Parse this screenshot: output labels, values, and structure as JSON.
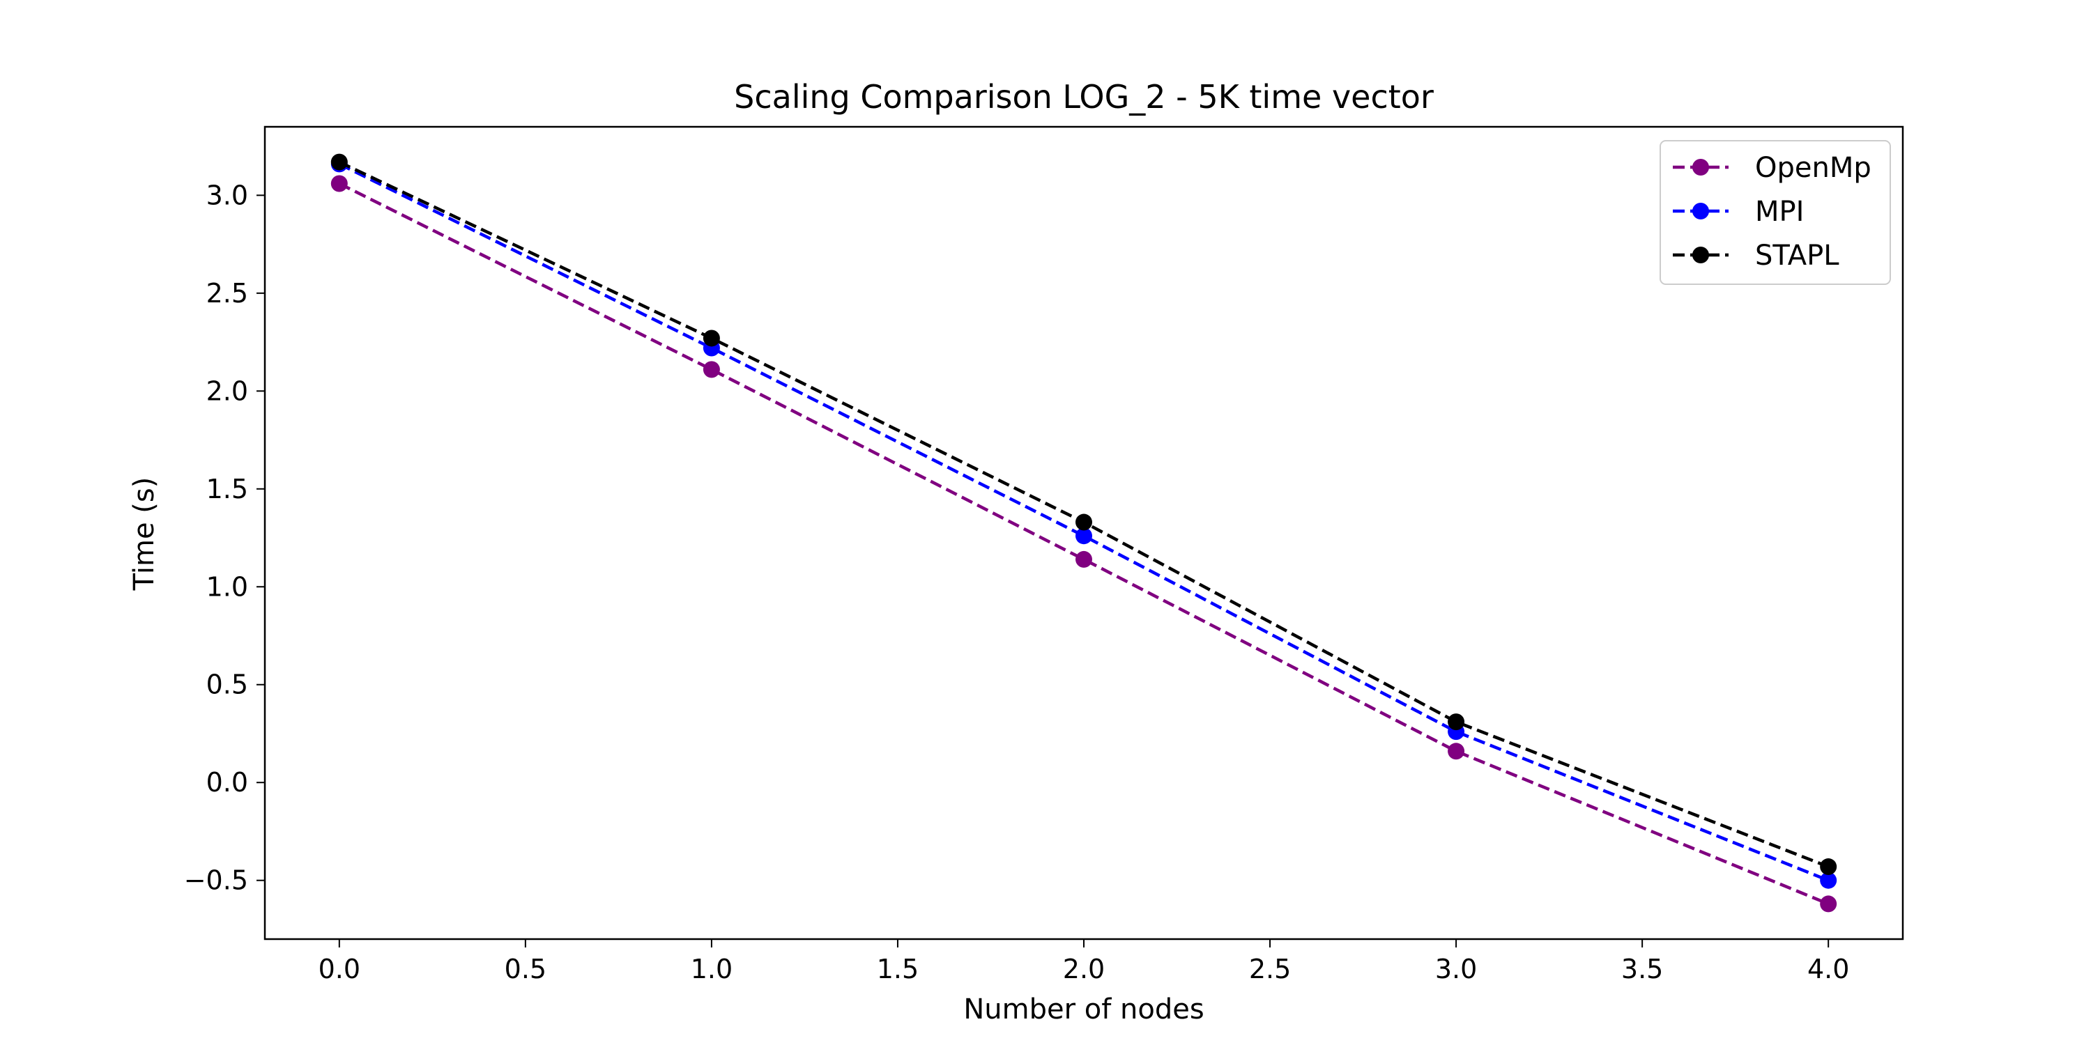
{
  "chart_data": {
    "type": "line",
    "title": "Scaling Comparison LOG_2 - 5K time vector",
    "xlabel": "Number of nodes",
    "ylabel": "Time (s)",
    "xlim": [
      -0.2,
      4.2
    ],
    "ylim": [
      -0.8,
      3.35
    ],
    "xticks": [
      0.0,
      0.5,
      1.0,
      1.5,
      2.0,
      2.5,
      3.0,
      3.5,
      4.0
    ],
    "xtick_labels": [
      "0.0",
      "0.5",
      "1.0",
      "1.5",
      "2.0",
      "2.5",
      "3.0",
      "3.5",
      "4.0"
    ],
    "yticks": [
      -0.5,
      0.0,
      0.5,
      1.0,
      1.5,
      2.0,
      2.5,
      3.0
    ],
    "ytick_labels": [
      "−0.5",
      "0.0",
      "0.5",
      "1.0",
      "1.5",
      "2.0",
      "2.5",
      "3.0"
    ],
    "grid": false,
    "legend_position": "top-right",
    "line_style": "dashed",
    "marker": "circle",
    "x": [
      0,
      1,
      2,
      3,
      4
    ],
    "series": [
      {
        "name": "OpenMp",
        "color": "#800080",
        "values": [
          3.06,
          2.11,
          1.14,
          0.16,
          -0.62
        ]
      },
      {
        "name": "MPI",
        "color": "#0000ff",
        "values": [
          3.16,
          2.22,
          1.26,
          0.26,
          -0.5
        ]
      },
      {
        "name": "STAPL",
        "color": "#000000",
        "values": [
          3.17,
          2.27,
          1.33,
          0.31,
          -0.43
        ]
      }
    ]
  }
}
